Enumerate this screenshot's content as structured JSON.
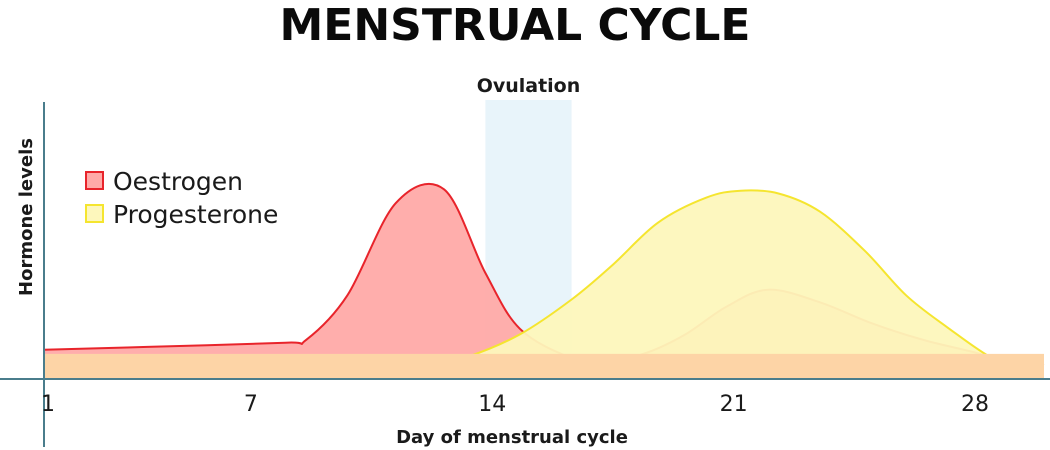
{
  "chart_data": {
    "type": "area",
    "title": "MENSTRUAL CYCLE",
    "xlabel": "Day of menstrual cycle",
    "ylabel": "Hormone levels",
    "xlim": [
      1,
      30
    ],
    "ylim": [
      0,
      10
    ],
    "x_ticks": [
      "1",
      "7",
      "14",
      "21",
      "28"
    ],
    "x_tick_values": [
      1,
      7,
      14,
      21,
      28
    ],
    "legend_position": "left",
    "annotation": {
      "label": "Ovulation",
      "x_start": 13.8,
      "x_end": 16.3,
      "color": "#e8f4fa"
    },
    "series": [
      {
        "name": "Oestrogen",
        "fill": "#ffaaa8",
        "stroke": "#e8242b",
        "x": [
          1,
          4,
          8,
          8.6,
          9.8,
          11.2,
          12.6,
          13.8,
          14.8,
          16.3,
          17.3,
          18.5,
          19.6,
          20.8,
          22,
          23.5,
          25,
          26.5,
          28,
          29.2,
          30
        ],
        "y": [
          1.05,
          1.15,
          1.3,
          1.4,
          3.0,
          6.3,
          6.8,
          3.8,
          1.8,
          0.75,
          0.6,
          0.95,
          1.6,
          2.6,
          3.2,
          2.75,
          2.0,
          1.4,
          0.95,
          0.55,
          0.5
        ]
      },
      {
        "name": "Progesterone",
        "fill": "#fdf7bc",
        "stroke": "#f5e52f",
        "x": [
          1,
          6,
          11,
          12.3,
          13.3,
          14.8,
          16.3,
          17.5,
          18.8,
          20.2,
          21.2,
          22.3,
          23.5,
          24.8,
          26,
          27.2,
          28.5,
          29.3,
          30
        ],
        "y": [
          0.55,
          0.55,
          0.55,
          0.55,
          0.8,
          1.6,
          2.85,
          4.1,
          5.6,
          6.5,
          6.75,
          6.65,
          6.0,
          4.6,
          3.0,
          1.85,
          0.75,
          0.55,
          0.5
        ]
      },
      {
        "name": "",
        "fill": "#fdd4a6",
        "stroke": "none",
        "x": [
          1,
          30
        ],
        "y": [
          0.9,
          0.9
        ]
      }
    ]
  }
}
